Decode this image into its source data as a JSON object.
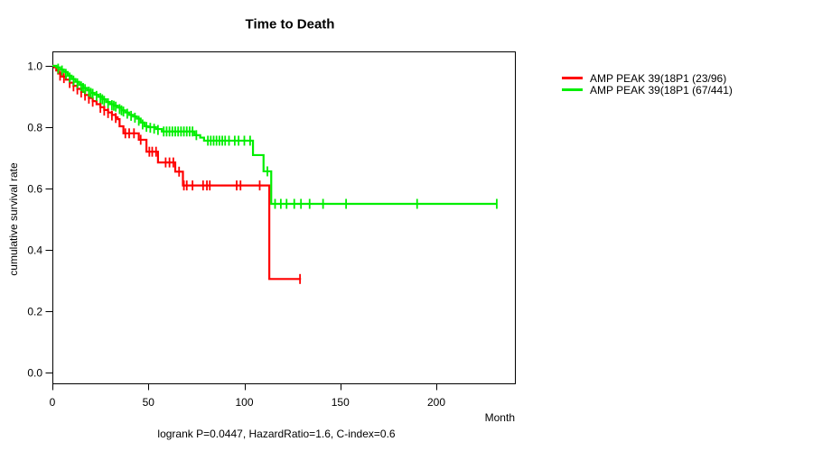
{
  "chart_data": {
    "type": "line",
    "subtype": "kaplan-meier-step",
    "title": "Time to Death",
    "xlabel": "Month",
    "ylabel": "cumulative survival rate",
    "footer": "logrank P=0.0447, HazardRatio=1.6, C-index=0.6",
    "xlim": [
      0,
      241
    ],
    "ylim": [
      0.0,
      1.0
    ],
    "xticks": [
      0,
      50,
      100,
      150,
      200
    ],
    "yticks": [
      "0.0",
      "0.2",
      "0.4",
      "0.6",
      "0.8",
      "1.0"
    ],
    "grid": false,
    "legend_position": "outside-top-right",
    "axis_color": "#000000",
    "series": [
      {
        "name": "AMP PEAK 39(18P1 (23/96)",
        "color": "#FF0000",
        "end_month": 129.5,
        "steps": [
          [
            0,
            1.0
          ],
          [
            1,
            0.995
          ],
          [
            2,
            0.985
          ],
          [
            3,
            0.975
          ],
          [
            5,
            0.965
          ],
          [
            7,
            0.955
          ],
          [
            9,
            0.945
          ],
          [
            11,
            0.935
          ],
          [
            13,
            0.925
          ],
          [
            15,
            0.915
          ],
          [
            17,
            0.905
          ],
          [
            19,
            0.895
          ],
          [
            21,
            0.885
          ],
          [
            23,
            0.875
          ],
          [
            25,
            0.865
          ],
          [
            27,
            0.856
          ],
          [
            29,
            0.848
          ],
          [
            31,
            0.84
          ],
          [
            33,
            0.832
          ],
          [
            34,
            0.826
          ],
          [
            35,
            0.803
          ],
          [
            37,
            0.78
          ],
          [
            45,
            0.759
          ],
          [
            49,
            0.72
          ],
          [
            55,
            0.685
          ],
          [
            64,
            0.655
          ],
          [
            68,
            0.61
          ],
          [
            113,
            0.305
          ]
        ],
        "censors": [
          [
            4,
            0.968
          ],
          [
            6,
            0.96
          ],
          [
            9,
            0.944
          ],
          [
            11,
            0.933
          ],
          [
            13,
            0.923
          ],
          [
            15,
            0.913
          ],
          [
            17,
            0.903
          ],
          [
            19,
            0.893
          ],
          [
            21,
            0.883
          ],
          [
            25,
            0.863
          ],
          [
            27,
            0.854
          ],
          [
            29,
            0.846
          ],
          [
            31,
            0.838
          ],
          [
            33,
            0.83
          ],
          [
            38,
            0.78
          ],
          [
            40,
            0.78
          ],
          [
            42.5,
            0.78
          ],
          [
            46,
            0.759
          ],
          [
            50.5,
            0.72
          ],
          [
            52,
            0.72
          ],
          [
            54,
            0.72
          ],
          [
            59,
            0.685
          ],
          [
            61,
            0.685
          ],
          [
            63,
            0.685
          ],
          [
            66,
            0.655
          ],
          [
            68.5,
            0.61
          ],
          [
            70,
            0.61
          ],
          [
            73,
            0.61
          ],
          [
            78.5,
            0.61
          ],
          [
            80.5,
            0.61
          ],
          [
            82,
            0.61
          ],
          [
            96,
            0.61
          ],
          [
            98,
            0.61
          ],
          [
            108,
            0.61
          ],
          [
            129,
            0.305
          ]
        ]
      },
      {
        "name": "AMP PEAK 39(18P1 (67/441)",
        "color": "#00EE00",
        "end_month": 231.5,
        "steps": [
          [
            0,
            1.0
          ],
          [
            2,
            0.995
          ],
          [
            4,
            0.988
          ],
          [
            6,
            0.98
          ],
          [
            8,
            0.968
          ],
          [
            10,
            0.957
          ],
          [
            12,
            0.948
          ],
          [
            14,
            0.938
          ],
          [
            16,
            0.928
          ],
          [
            18,
            0.92
          ],
          [
            20,
            0.912
          ],
          [
            22,
            0.906
          ],
          [
            24,
            0.899
          ],
          [
            26,
            0.891
          ],
          [
            28,
            0.882
          ],
          [
            30,
            0.875
          ],
          [
            32,
            0.87
          ],
          [
            34,
            0.864
          ],
          [
            36,
            0.855
          ],
          [
            38,
            0.848
          ],
          [
            40,
            0.84
          ],
          [
            42,
            0.835
          ],
          [
            44,
            0.828
          ],
          [
            46,
            0.815
          ],
          [
            48,
            0.803
          ],
          [
            50,
            0.8
          ],
          [
            54,
            0.794
          ],
          [
            57,
            0.786
          ],
          [
            74,
            0.774
          ],
          [
            77,
            0.766
          ],
          [
            79,
            0.756
          ],
          [
            104.5,
            0.709
          ],
          [
            110,
            0.656
          ],
          [
            114,
            0.55
          ]
        ],
        "censors": [
          [
            3,
            0.991
          ],
          [
            5,
            0.985
          ],
          [
            7,
            0.974
          ],
          [
            9,
            0.962
          ],
          [
            11,
            0.952
          ],
          [
            13,
            0.943
          ],
          [
            15,
            0.933
          ],
          [
            16,
            0.928
          ],
          [
            17,
            0.924
          ],
          [
            19,
            0.916
          ],
          [
            20,
            0.912
          ],
          [
            21,
            0.909
          ],
          [
            23,
            0.902
          ],
          [
            25,
            0.895
          ],
          [
            26,
            0.891
          ],
          [
            27,
            0.886
          ],
          [
            29,
            0.878
          ],
          [
            31,
            0.872
          ],
          [
            32,
            0.87
          ],
          [
            33,
            0.867
          ],
          [
            35,
            0.859
          ],
          [
            36,
            0.855
          ],
          [
            37,
            0.851
          ],
          [
            39,
            0.844
          ],
          [
            41,
            0.837
          ],
          [
            43,
            0.831
          ],
          [
            45,
            0.821
          ],
          [
            47,
            0.809
          ],
          [
            49,
            0.801
          ],
          [
            51,
            0.798
          ],
          [
            53,
            0.795
          ],
          [
            55,
            0.791
          ],
          [
            58,
            0.786
          ],
          [
            59.5,
            0.786
          ],
          [
            61,
            0.786
          ],
          [
            62.5,
            0.786
          ],
          [
            64,
            0.786
          ],
          [
            65.5,
            0.786
          ],
          [
            67,
            0.786
          ],
          [
            68.5,
            0.786
          ],
          [
            70,
            0.786
          ],
          [
            71.5,
            0.786
          ],
          [
            73,
            0.786
          ],
          [
            75,
            0.774
          ],
          [
            81,
            0.756
          ],
          [
            82.5,
            0.756
          ],
          [
            84,
            0.756
          ],
          [
            85.5,
            0.756
          ],
          [
            87,
            0.756
          ],
          [
            88.5,
            0.756
          ],
          [
            90,
            0.756
          ],
          [
            92,
            0.756
          ],
          [
            95,
            0.756
          ],
          [
            97,
            0.756
          ],
          [
            100,
            0.756
          ],
          [
            103,
            0.756
          ],
          [
            112,
            0.656
          ],
          [
            116,
            0.55
          ],
          [
            119,
            0.55
          ],
          [
            122,
            0.55
          ],
          [
            126,
            0.55
          ],
          [
            129.5,
            0.55
          ],
          [
            134,
            0.55
          ],
          [
            141,
            0.55
          ],
          [
            153,
            0.55
          ],
          [
            190,
            0.55
          ],
          [
            231.5,
            0.55
          ]
        ]
      }
    ]
  }
}
